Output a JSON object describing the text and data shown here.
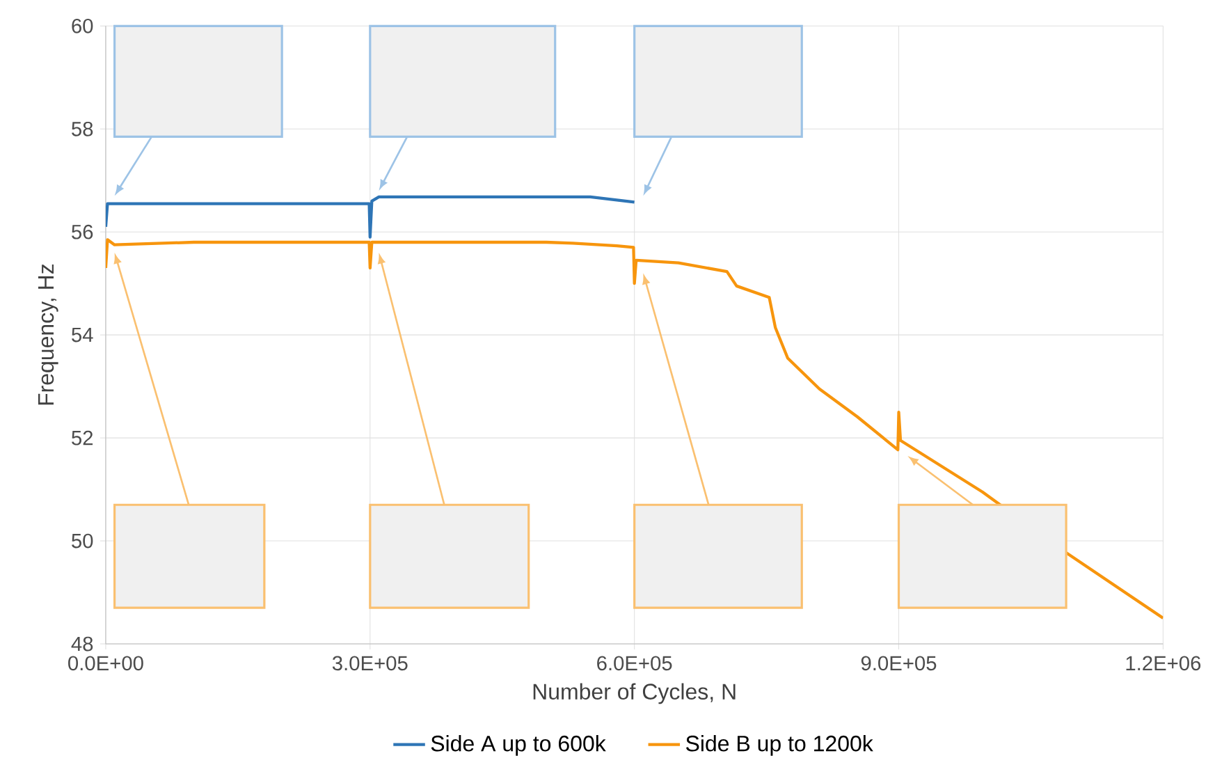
{
  "chart_data": {
    "type": "line",
    "xlabel": "Number of Cycles, N",
    "ylabel": "Frequency, Hz",
    "xlim": [
      0,
      1200000
    ],
    "ylim": [
      48,
      60
    ],
    "xticks": [
      {
        "value": 0,
        "label": "0.0E+00"
      },
      {
        "value": 300000,
        "label": "3.0E+05"
      },
      {
        "value": 600000,
        "label": "6.0E+05"
      },
      {
        "value": 900000,
        "label": "9.0E+05"
      },
      {
        "value": 1200000,
        "label": "1.2E+06"
      }
    ],
    "yticks": [
      48,
      50,
      52,
      54,
      56,
      58,
      60
    ],
    "grid": true,
    "legend": "bottom",
    "series": [
      {
        "name": "Side A up to 600k",
        "color": "#2e75b6",
        "x": [
          0,
          2000,
          100000,
          200000,
          299000,
          300000,
          302000,
          310000,
          400000,
          500000,
          550000,
          580000,
          600000
        ],
        "values": [
          56.1,
          56.55,
          56.55,
          56.55,
          56.55,
          55.9,
          56.6,
          56.68,
          56.68,
          56.68,
          56.68,
          56.62,
          56.58
        ]
      },
      {
        "name": "Side B up to 1200k",
        "color": "#f7950d",
        "x": [
          0,
          2000,
          10000,
          100000,
          200000,
          299000,
          300000,
          302000,
          400000,
          500000,
          530000,
          580000,
          599000,
          600000,
          602000,
          650000,
          705000,
          716000,
          753000,
          760000,
          774000,
          810000,
          853000,
          899000,
          900000,
          902000,
          995000,
          1090000,
          1200000
        ],
        "values": [
          55.3,
          55.85,
          55.75,
          55.8,
          55.8,
          55.8,
          55.3,
          55.8,
          55.8,
          55.8,
          55.78,
          55.73,
          55.7,
          55.0,
          55.45,
          55.4,
          55.23,
          54.95,
          54.73,
          54.14,
          53.55,
          52.95,
          52.41,
          51.77,
          52.5,
          51.95,
          50.95,
          49.77,
          48.5
        ]
      }
    ]
  }
}
